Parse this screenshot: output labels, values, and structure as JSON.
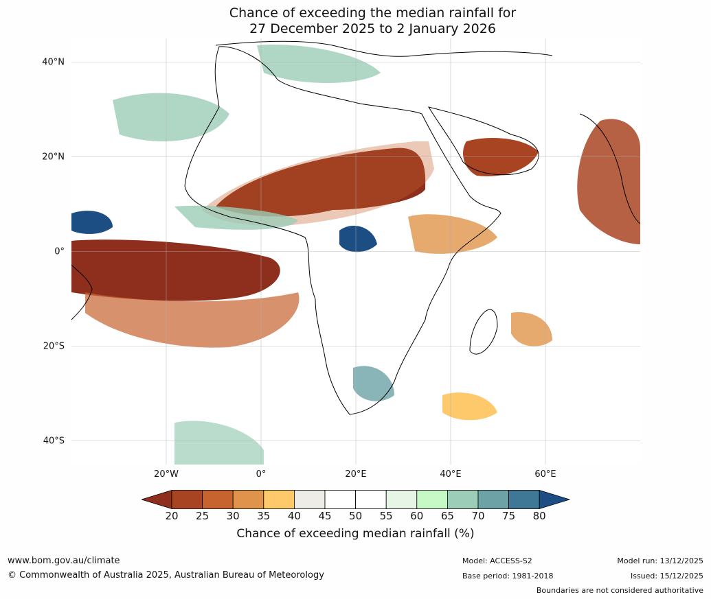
{
  "title": {
    "line1": "Chance of exceeding the median rainfall for",
    "line2": "27 December 2025 to 2 January 2026"
  },
  "map": {
    "lat_labels": [
      "40°N",
      "20°N",
      "0°",
      "20°S",
      "40°S"
    ],
    "lon_labels": [
      "20°W",
      "0°",
      "20°E",
      "40°E",
      "60°E"
    ],
    "lat_values": [
      40,
      20,
      0,
      -20,
      -40
    ],
    "lon_values": [
      -20,
      0,
      20,
      40,
      60
    ],
    "extent": {
      "lon_min": -40,
      "lon_max": 80,
      "lat_min": -45,
      "lat_max": 45
    },
    "land_color": "#ffffff",
    "coast_color": "#000000",
    "border_color": "#808080",
    "grid_color": "#b0b0b0"
  },
  "colorbar": {
    "tick_labels": [
      "20",
      "25",
      "30",
      "35",
      "40",
      "45",
      "50",
      "55",
      "60",
      "65",
      "70",
      "75",
      "80"
    ],
    "colors": [
      "#8e2e1c",
      "#a94423",
      "#c7632f",
      "#e0934a",
      "#fdc96a",
      "#eeece6",
      "#ffffff",
      "#ffffff",
      "#e7f5e6",
      "#c6f9c6",
      "#9ccdb8",
      "#6da3a6",
      "#3f7797",
      "#1c4d83"
    ],
    "label": "Chance of exceeding median rainfall (%)"
  },
  "footer": {
    "url": "www.bom.gov.au/climate",
    "copyright": "© Commonwealth of Australia 2025, Australian Bureau of Meteorology",
    "model": "Model: ACCESS-S2",
    "base_period": "Base period: 1981-2018",
    "model_run": "Model run: 13/12/2025",
    "issued": "Issued: 15/12/2025",
    "disclaimer": "Boundaries are not considered authoritative"
  }
}
